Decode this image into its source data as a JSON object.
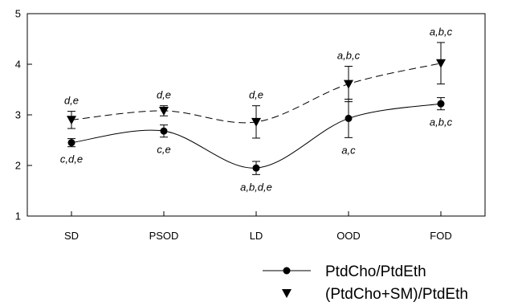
{
  "chart_data": {
    "type": "line",
    "categories": [
      "SD",
      "PSOD",
      "LD",
      "OOD",
      "FOD"
    ],
    "ylim": [
      1,
      5
    ],
    "yticks": [
      "1",
      "2",
      "3",
      "4",
      "5"
    ],
    "title": "",
    "xlabel": "",
    "ylabel": "",
    "grid": false,
    "legend_position": "bottom-right",
    "series": [
      {
        "name": "PtdCho/PtdEth",
        "marker": "circle",
        "line_style": "solid",
        "values": [
          2.45,
          2.68,
          1.95,
          2.93,
          3.22
        ],
        "error": [
          0.08,
          0.12,
          0.13,
          0.38,
          0.12
        ],
        "annotations": [
          "c,d,e",
          "c,e",
          "a,b,d,e",
          "a,c",
          "a,b,c"
        ],
        "annotation_position": "below"
      },
      {
        "name": "(PtdCho+SM)/PtdEth",
        "marker": "triangle-down",
        "line_style": "dashed",
        "values": [
          2.9,
          3.08,
          2.86,
          3.61,
          4.02
        ],
        "error": [
          0.17,
          0.1,
          0.32,
          0.35,
          0.41
        ],
        "annotations": [
          "d,e",
          "d,e",
          "d,e",
          "a,b,c",
          "a,b,c"
        ],
        "annotation_position": "above"
      }
    ]
  }
}
